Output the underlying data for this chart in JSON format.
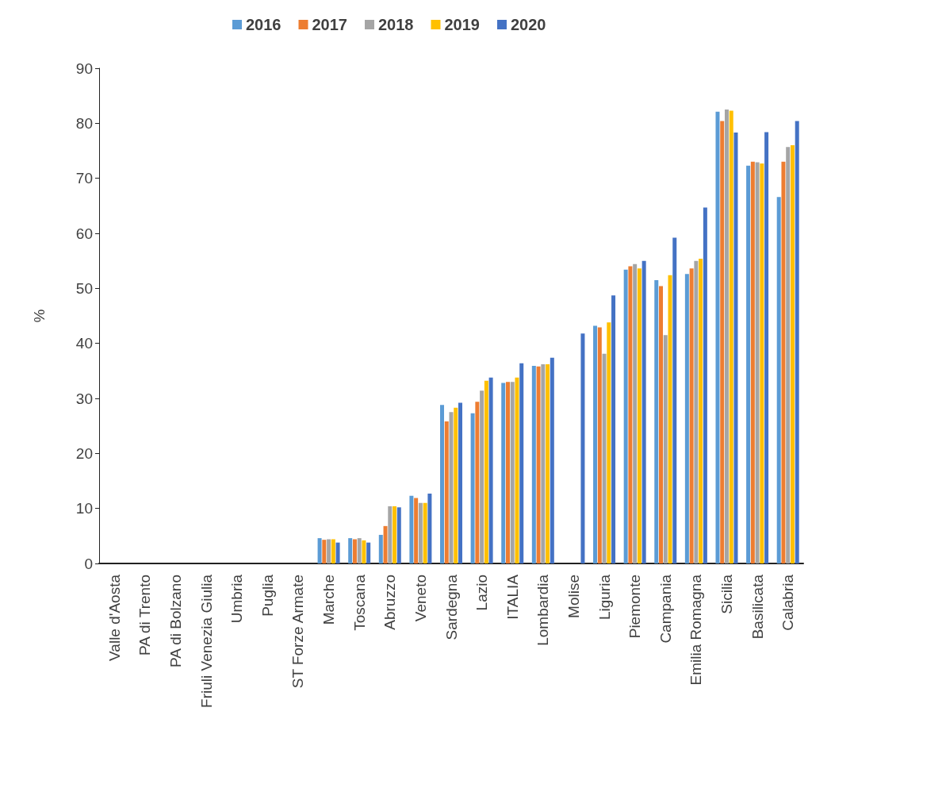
{
  "chart_data": {
    "type": "bar",
    "ylabel": "%",
    "categories": [
      "Valle d'Aosta",
      "PA di Trento",
      "PA di Bolzano",
      "Friuli Venezia Giulia",
      "Umbria",
      "Puglia",
      "ST Forze Armate",
      "Marche",
      "Toscana",
      "Abruzzo",
      "Veneto",
      "Sardegna",
      "Lazio",
      "ITALIA",
      "Lombardia",
      "Molise",
      "Liguria",
      "Piemonte",
      "Campania",
      "Emilia Romagna",
      "Sicilia",
      "Basilicata",
      "Calabria"
    ],
    "series": [
      {
        "name": "2016",
        "color": "#5b9bd5",
        "values": [
          null,
          null,
          null,
          null,
          null,
          null,
          null,
          4.6,
          4.6,
          5.2,
          12.3,
          28.8,
          27.3,
          32.8,
          35.9,
          null,
          43.2,
          53.4,
          51.5,
          52.6,
          82.1,
          72.3,
          66.6
        ]
      },
      {
        "name": "2017",
        "color": "#ed7d31",
        "values": [
          null,
          null,
          null,
          null,
          null,
          null,
          null,
          4.3,
          4.4,
          6.8,
          11.9,
          25.8,
          29.4,
          33.0,
          35.8,
          null,
          42.9,
          54.0,
          50.4,
          53.6,
          80.4,
          73.0,
          73.0
        ]
      },
      {
        "name": "2018",
        "color": "#a5a5a5",
        "values": [
          null,
          null,
          null,
          null,
          null,
          null,
          null,
          4.4,
          4.6,
          10.4,
          11.0,
          27.5,
          31.4,
          33.0,
          36.2,
          null,
          38.1,
          54.4,
          41.5,
          55.0,
          82.5,
          72.9,
          75.7
        ]
      },
      {
        "name": "2019",
        "color": "#ffc000",
        "values": [
          null,
          null,
          null,
          null,
          null,
          null,
          null,
          4.4,
          4.2,
          10.4,
          11.0,
          28.3,
          33.2,
          33.8,
          36.2,
          null,
          43.8,
          53.6,
          52.4,
          55.4,
          82.3,
          72.7,
          76.0
        ]
      },
      {
        "name": "2020",
        "color": "#4472c4",
        "values": [
          null,
          null,
          null,
          null,
          null,
          null,
          null,
          3.8,
          3.8,
          10.2,
          12.7,
          29.2,
          33.8,
          36.4,
          37.4,
          41.8,
          48.7,
          55.0,
          59.2,
          64.7,
          78.3,
          78.4,
          80.4
        ]
      }
    ],
    "ylim": [
      0,
      90
    ],
    "yticks": [
      0,
      10,
      20,
      30,
      40,
      50,
      60,
      70,
      80,
      90
    ],
    "grid": false,
    "legend": "top"
  }
}
